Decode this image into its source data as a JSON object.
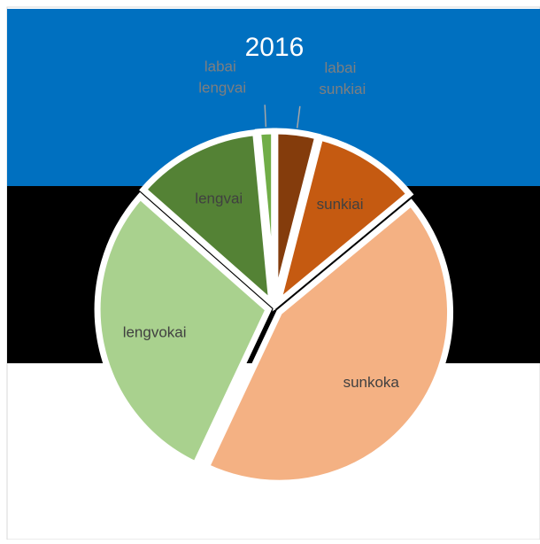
{
  "chart_data": {
    "type": "pie",
    "title": "2016",
    "categories": [
      "labai sunkiai",
      "sunkiai",
      "sunkoka",
      "lengvokai",
      "lengvai",
      "labai lengvai"
    ],
    "values": [
      4,
      10,
      43,
      29.5,
      12,
      1.5
    ],
    "colors": [
      "#843c0c",
      "#c55a11",
      "#f4b183",
      "#a9d18e",
      "#548235",
      "#70ad47"
    ],
    "legend": false
  }
}
